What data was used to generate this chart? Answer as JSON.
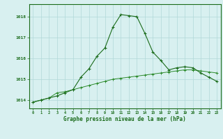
{
  "hours": [
    0,
    1,
    2,
    3,
    4,
    5,
    6,
    7,
    8,
    9,
    10,
    11,
    12,
    13,
    14,
    15,
    16,
    17,
    18,
    19,
    20,
    21,
    22,
    23
  ],
  "line1": [
    1013.9,
    1014.0,
    1014.1,
    1014.2,
    1014.35,
    1014.5,
    1015.1,
    1015.5,
    1016.1,
    1016.5,
    1017.5,
    1018.1,
    1018.05,
    1018.0,
    1017.2,
    1016.3,
    1015.9,
    1015.45,
    1015.55,
    1015.6,
    1015.55,
    1015.3,
    1015.1,
    1014.9
  ],
  "line2": [
    1013.9,
    1014.0,
    1014.1,
    1014.35,
    1014.4,
    1014.5,
    1014.6,
    1014.7,
    1014.8,
    1014.9,
    1015.0,
    1015.05,
    1015.1,
    1015.15,
    1015.2,
    1015.25,
    1015.3,
    1015.35,
    1015.4,
    1015.45,
    1015.45,
    1015.4,
    1015.35,
    1015.3
  ],
  "line1_color": "#1a6b1a",
  "line2_color": "#2d8b2d",
  "bg_color": "#d8f0f0",
  "grid_color": "#b0d8d8",
  "xlabel": "Graphe pression niveau de la mer (hPa)",
  "xlabel_color": "#1a6b1a",
  "tick_color": "#1a6b1a",
  "ylim": [
    1013.6,
    1018.6
  ],
  "yticks": [
    1014,
    1015,
    1016,
    1017,
    1018
  ],
  "xlim": [
    -0.5,
    23.5
  ]
}
